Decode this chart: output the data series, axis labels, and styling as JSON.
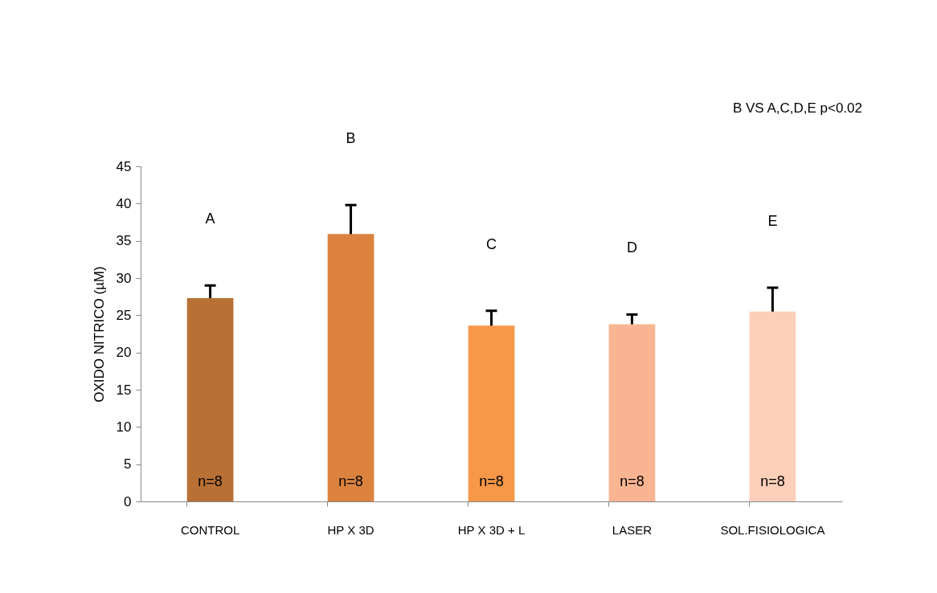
{
  "chart_data": {
    "type": "bar",
    "ylabel": "OXIDO NITRICO (µM)",
    "categories": [
      "CONTROL",
      "HP X 3D",
      "HP X 3D + L",
      "LASER",
      "SOL.FISIOLOGICA"
    ],
    "values": [
      27.3,
      35.9,
      23.6,
      23.8,
      25.5
    ],
    "colors": [
      "#b87034",
      "#db823f",
      "#f79748",
      "#f9b591",
      "#fbcfb9"
    ],
    "errors": [
      1.7,
      3.9,
      2.0,
      1.3,
      3.2
    ],
    "ylim": [
      0,
      45
    ],
    "yticks": [
      0,
      5,
      10,
      15,
      20,
      25,
      30,
      35,
      40,
      45
    ],
    "grid": false,
    "annotations": [
      "A",
      "B",
      "C",
      "D",
      "E",
      "n=8",
      "n=8",
      "n=8",
      "n=8",
      "n=8",
      "B VS A,C,D,E p<0.02"
    ]
  }
}
